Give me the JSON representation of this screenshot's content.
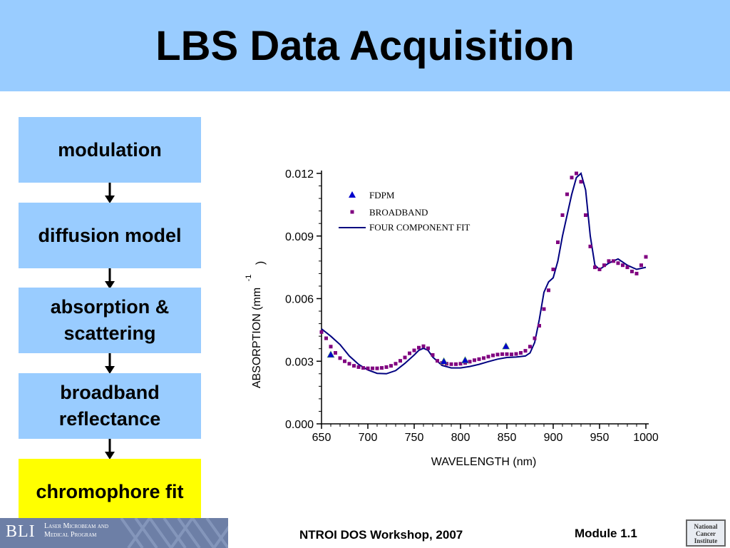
{
  "slide": {
    "title": "LBS Data Acquisition"
  },
  "flow": {
    "steps": [
      {
        "label": "modulation"
      },
      {
        "label": "diffusion model"
      },
      {
        "label": "absorption & scattering"
      },
      {
        "label": "broadband reflectance"
      },
      {
        "label": "chromophore fit",
        "highlight_color": "#ffff00"
      }
    ],
    "box_color": "#99ccff"
  },
  "footer": {
    "logo_letters": "BLI",
    "logo_text": "Laser Microbeam and Medical Program",
    "center": "NTROI DOS Workshop, 2007",
    "right": "Module 1.1",
    "nci_logo_text": "National Cancer Institute"
  },
  "colors": {
    "title_bar": "#99ccff",
    "fdpm": "#0000cc",
    "broadband": "#800080",
    "fit": "#000080"
  },
  "chart_data": {
    "type": "line",
    "title": "",
    "xlabel": "WAVELENGTH (nm)",
    "ylabel": "ABSORPTION (mm-1)",
    "ylabel_text": "ABSORPTION (mm",
    "ylabel_sup": "-1",
    "ylabel_close": ")",
    "xlim": [
      650,
      1000
    ],
    "ylim": [
      0.0,
      0.012
    ],
    "xticks": [
      "650",
      "700",
      "750",
      "800",
      "850",
      "900",
      "950",
      "1000"
    ],
    "yticks": [
      "0.000",
      "0.003",
      "0.006",
      "0.009",
      "0.012"
    ],
    "legend_position": "top-left",
    "series": [
      {
        "name": "FDPM",
        "marker": "triangle",
        "x": [
          660,
          782,
          805,
          849
        ],
        "y": [
          0.00332,
          0.003,
          0.00305,
          0.00372
        ]
      },
      {
        "name": "BROADBAND",
        "marker": "square",
        "x": [
          650,
          655,
          660,
          665,
          670,
          675,
          680,
          685,
          690,
          695,
          700,
          705,
          710,
          715,
          720,
          725,
          730,
          735,
          740,
          745,
          750,
          755,
          760,
          765,
          770,
          775,
          780,
          785,
          790,
          795,
          800,
          805,
          810,
          815,
          820,
          825,
          830,
          835,
          840,
          845,
          850,
          855,
          860,
          865,
          870,
          875,
          880,
          885,
          890,
          895,
          900,
          905,
          910,
          915,
          920,
          925,
          930,
          935,
          940,
          945,
          950,
          955,
          960,
          965,
          970,
          975,
          980,
          985,
          990,
          995,
          1000
        ],
        "y": [
          0.0044,
          0.0041,
          0.0037,
          0.0034,
          0.00315,
          0.003,
          0.00288,
          0.00278,
          0.00272,
          0.00268,
          0.00266,
          0.00266,
          0.00266,
          0.00268,
          0.00272,
          0.00278,
          0.00288,
          0.00302,
          0.00318,
          0.00338,
          0.00352,
          0.00365,
          0.00372,
          0.00362,
          0.0033,
          0.00302,
          0.00292,
          0.00288,
          0.00286,
          0.00286,
          0.00288,
          0.00292,
          0.00298,
          0.00305,
          0.0031,
          0.00315,
          0.00322,
          0.00328,
          0.00332,
          0.00334,
          0.00334,
          0.00333,
          0.00335,
          0.0034,
          0.0035,
          0.0037,
          0.0041,
          0.0047,
          0.0055,
          0.0064,
          0.0074,
          0.0087,
          0.01,
          0.011,
          0.0118,
          0.012,
          0.0116,
          0.01,
          0.0085,
          0.0075,
          0.0074,
          0.0076,
          0.0078,
          0.0078,
          0.0077,
          0.0076,
          0.0075,
          0.0073,
          0.0072,
          0.0076,
          0.008
        ]
      },
      {
        "name": "FOUR COMPONENT FIT",
        "marker": "line",
        "x": [
          650,
          660,
          670,
          680,
          690,
          700,
          710,
          720,
          730,
          740,
          750,
          755,
          760,
          765,
          770,
          780,
          790,
          800,
          810,
          820,
          830,
          840,
          850,
          860,
          870,
          875,
          880,
          885,
          890,
          895,
          900,
          905,
          910,
          915,
          920,
          925,
          930,
          935,
          940,
          945,
          950,
          960,
          970,
          980,
          990,
          1000
        ],
        "y": [
          0.00455,
          0.0042,
          0.0038,
          0.00325,
          0.00285,
          0.00258,
          0.00242,
          0.0024,
          0.00255,
          0.0029,
          0.0033,
          0.00352,
          0.00362,
          0.00352,
          0.0032,
          0.0028,
          0.00268,
          0.00268,
          0.00275,
          0.00285,
          0.00298,
          0.0031,
          0.00318,
          0.0032,
          0.00325,
          0.0034,
          0.0039,
          0.005,
          0.0063,
          0.0068,
          0.007,
          0.0078,
          0.009,
          0.01,
          0.011,
          0.0118,
          0.012,
          0.0112,
          0.009,
          0.0076,
          0.0074,
          0.0077,
          0.0079,
          0.0076,
          0.0074,
          0.0075
        ]
      }
    ]
  }
}
